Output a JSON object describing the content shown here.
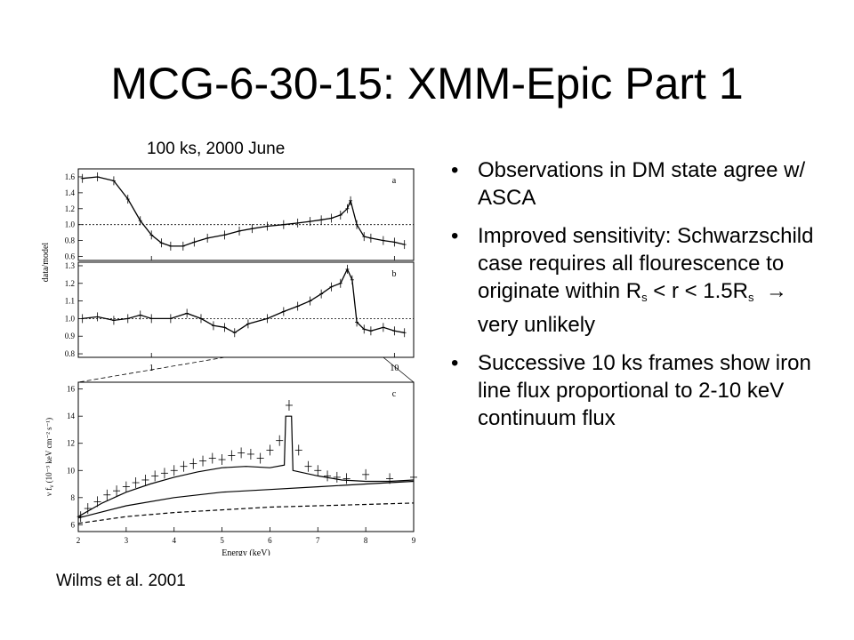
{
  "slide": {
    "title": "MCG-6-30-15: XMM-Epic Part 1",
    "figure_caption": "100 ks, 2000 June",
    "credit": "Wilms et al. 2001"
  },
  "bullets": [
    {
      "text": "Observations in DM state agree w/ ASCA"
    },
    {
      "pre": "Improved sensitivity: Schwarzschild case requires all flourescence to originate within R",
      "sub1": "s",
      "mid": " < r < 1.5R",
      "sub2": "s",
      "arrow": "→",
      "post": " very unlikely"
    },
    {
      "text": "Successive 10 ks frames show iron line flux proportional to 2-10 keV continuum flux"
    }
  ],
  "bullet_glyph": "•",
  "chart_data": [
    {
      "type": "scatter",
      "panel_label": "a",
      "ylabel": "data/model",
      "yticks": [
        "1.6",
        "1.4",
        "1.2",
        "1.0",
        "0.8",
        "0.6"
      ],
      "ylim": [
        0.55,
        1.7
      ],
      "xscale": "log",
      "xlim": [
        0.5,
        12
      ],
      "xtick_labels": [
        "1",
        "10"
      ],
      "reference_line": 1.0,
      "points": [
        [
          0.52,
          1.58
        ],
        [
          0.6,
          1.6
        ],
        [
          0.7,
          1.55
        ],
        [
          0.8,
          1.32
        ],
        [
          0.9,
          1.05
        ],
        [
          1.0,
          0.87
        ],
        [
          1.1,
          0.77
        ],
        [
          1.2,
          0.73
        ],
        [
          1.35,
          0.73
        ],
        [
          1.5,
          0.78
        ],
        [
          1.7,
          0.83
        ],
        [
          2.0,
          0.87
        ],
        [
          2.3,
          0.92
        ],
        [
          2.6,
          0.95
        ],
        [
          3.0,
          0.98
        ],
        [
          3.5,
          1.0
        ],
        [
          4.0,
          1.02
        ],
        [
          4.5,
          1.04
        ],
        [
          5.0,
          1.06
        ],
        [
          5.5,
          1.08
        ],
        [
          6.0,
          1.12
        ],
        [
          6.4,
          1.2
        ],
        [
          6.6,
          1.3
        ],
        [
          7.0,
          1.0
        ],
        [
          7.5,
          0.85
        ],
        [
          8.0,
          0.83
        ],
        [
          9.0,
          0.8
        ],
        [
          10,
          0.78
        ],
        [
          11,
          0.75
        ]
      ]
    },
    {
      "type": "scatter",
      "panel_label": "b",
      "yticks": [
        "1.3",
        "1.2",
        "1.1",
        "1.0",
        "0.9",
        "0.8"
      ],
      "ylim": [
        0.78,
        1.32
      ],
      "xscale": "log",
      "xlim": [
        0.5,
        12
      ],
      "reference_line": 1.0,
      "points": [
        [
          0.52,
          1.0
        ],
        [
          0.6,
          1.01
        ],
        [
          0.7,
          0.99
        ],
        [
          0.8,
          1.0
        ],
        [
          0.9,
          1.02
        ],
        [
          1.0,
          1.0
        ],
        [
          1.2,
          1.0
        ],
        [
          1.4,
          1.03
        ],
        [
          1.6,
          1.0
        ],
        [
          1.8,
          0.96
        ],
        [
          2.0,
          0.95
        ],
        [
          2.2,
          0.92
        ],
        [
          2.5,
          0.97
        ],
        [
          3.0,
          1.0
        ],
        [
          3.5,
          1.04
        ],
        [
          4.0,
          1.07
        ],
        [
          4.5,
          1.1
        ],
        [
          5.0,
          1.14
        ],
        [
          5.5,
          1.18
        ],
        [
          6.0,
          1.2
        ],
        [
          6.4,
          1.28
        ],
        [
          6.7,
          1.22
        ],
        [
          7.0,
          0.98
        ],
        [
          7.5,
          0.94
        ],
        [
          8.0,
          0.93
        ],
        [
          9.0,
          0.95
        ],
        [
          10,
          0.93
        ],
        [
          11,
          0.92
        ]
      ]
    },
    {
      "type": "line",
      "panel_label": "c",
      "xlabel": "Energy (keV)",
      "ylabel": "ν f",
      "ylabel_sub": "ν",
      "ylabel_units": "(10⁻³ keV cm⁻² s⁻¹)",
      "xlim": [
        2,
        9
      ],
      "ylim": [
        5.5,
        16.5
      ],
      "xticks": [
        "2",
        "3",
        "4",
        "5",
        "6",
        "7",
        "8",
        "9"
      ],
      "yticks": [
        "16",
        "14",
        "12",
        "10",
        "8",
        "6"
      ],
      "data_points": [
        [
          2.05,
          6.6
        ],
        [
          2.2,
          7.2
        ],
        [
          2.4,
          7.7
        ],
        [
          2.6,
          8.2
        ],
        [
          2.8,
          8.5
        ],
        [
          3.0,
          8.8
        ],
        [
          3.2,
          9.1
        ],
        [
          3.4,
          9.3
        ],
        [
          3.6,
          9.6
        ],
        [
          3.8,
          9.8
        ],
        [
          4.0,
          10.0
        ],
        [
          4.2,
          10.3
        ],
        [
          4.4,
          10.5
        ],
        [
          4.6,
          10.7
        ],
        [
          4.8,
          10.9
        ],
        [
          5.0,
          10.8
        ],
        [
          5.2,
          11.1
        ],
        [
          5.4,
          11.3
        ],
        [
          5.6,
          11.2
        ],
        [
          5.8,
          10.9
        ],
        [
          6.0,
          11.5
        ],
        [
          6.2,
          12.2
        ],
        [
          6.4,
          14.8
        ],
        [
          6.6,
          11.5
        ],
        [
          6.8,
          10.3
        ],
        [
          7.0,
          10.0
        ],
        [
          7.2,
          9.6
        ],
        [
          7.4,
          9.5
        ],
        [
          7.6,
          9.4
        ],
        [
          8.0,
          9.7
        ],
        [
          8.5,
          9.4
        ],
        [
          9.0,
          9.5
        ]
      ],
      "model_total": [
        [
          2.0,
          6.6
        ],
        [
          2.5,
          7.6
        ],
        [
          3.0,
          8.4
        ],
        [
          3.5,
          9.0
        ],
        [
          4.0,
          9.5
        ],
        [
          4.5,
          9.9
        ],
        [
          5.0,
          10.2
        ],
        [
          5.5,
          10.3
        ],
        [
          6.0,
          10.2
        ],
        [
          6.3,
          10.4
        ],
        [
          6.33,
          14.0
        ],
        [
          6.45,
          14.0
        ],
        [
          6.48,
          10.0
        ],
        [
          7.0,
          9.6
        ],
        [
          7.5,
          9.3
        ],
        [
          8.0,
          9.2
        ],
        [
          8.5,
          9.2
        ],
        [
          9.0,
          9.3
        ]
      ],
      "model_continuum": [
        [
          2.0,
          6.5
        ],
        [
          3.0,
          7.4
        ],
        [
          4.0,
          8.0
        ],
        [
          5.0,
          8.4
        ],
        [
          6.0,
          8.6
        ],
        [
          7.0,
          8.8
        ],
        [
          8.0,
          9.0
        ],
        [
          9.0,
          9.2
        ]
      ],
      "model_dashed": [
        [
          2.0,
          6.1
        ],
        [
          3.0,
          6.6
        ],
        [
          4.0,
          6.9
        ],
        [
          5.0,
          7.1
        ],
        [
          6.0,
          7.3
        ],
        [
          7.0,
          7.4
        ],
        [
          8.0,
          7.5
        ],
        [
          9.0,
          7.6
        ]
      ]
    }
  ]
}
